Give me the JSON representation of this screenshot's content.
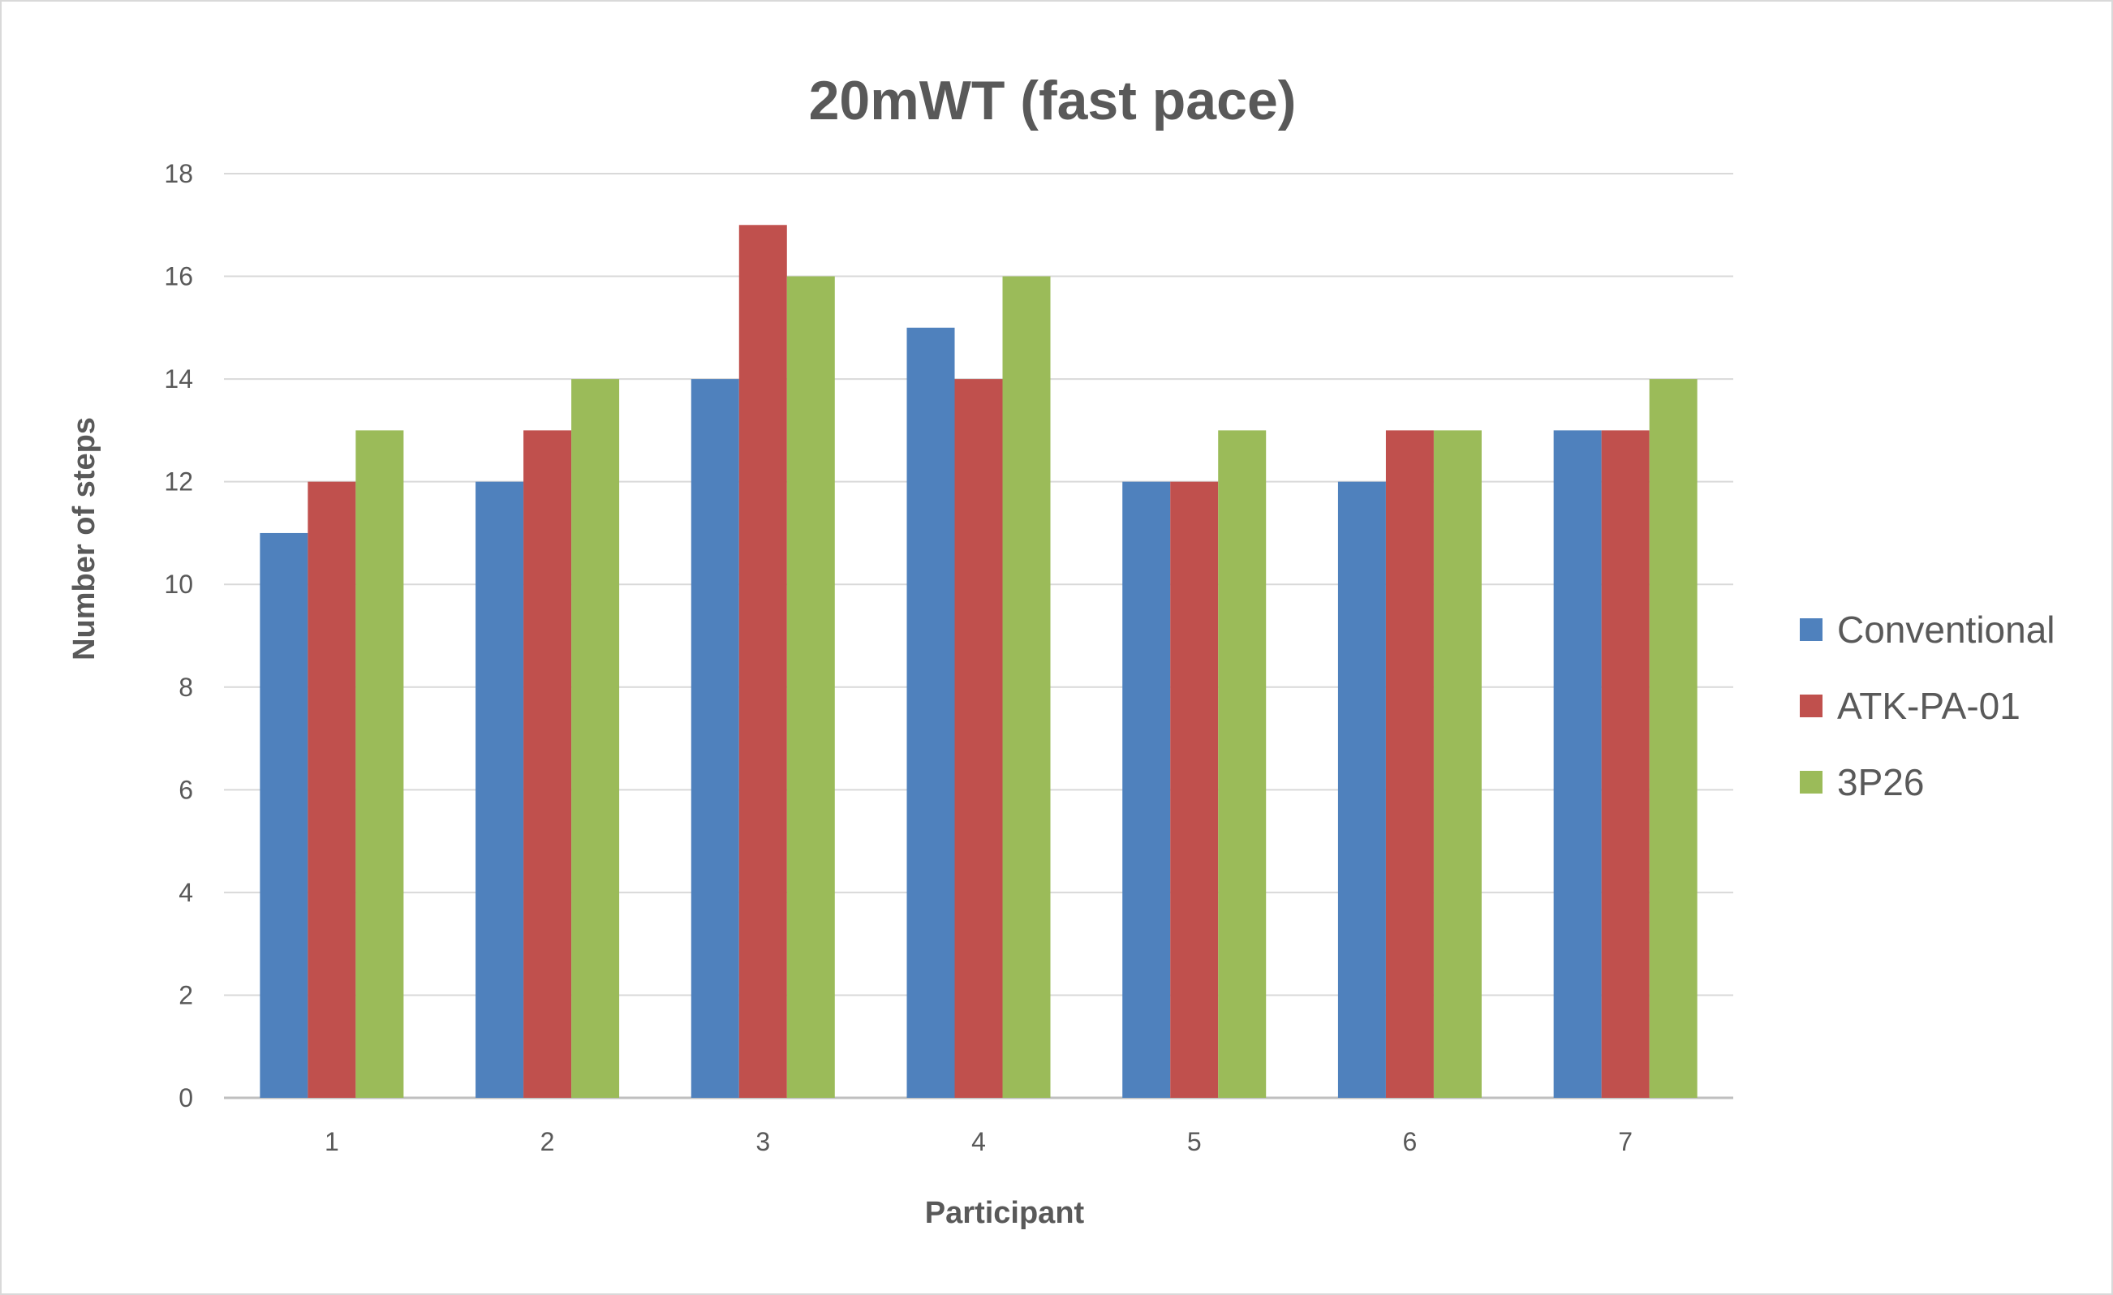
{
  "chart_data": {
    "type": "bar",
    "title": "20mWT (fast pace)",
    "xlabel": "Participant",
    "ylabel": "Number of steps",
    "categories": [
      "1",
      "2",
      "3",
      "4",
      "5",
      "6",
      "7"
    ],
    "series": [
      {
        "name": "Conventional",
        "color": "#4f81bd",
        "values": [
          11,
          12,
          14,
          15,
          12,
          12,
          13
        ]
      },
      {
        "name": "ATK-PA-01",
        "color": "#c0504d",
        "values": [
          12,
          13,
          17,
          14,
          12,
          13,
          13
        ]
      },
      {
        "name": "3P26",
        "color": "#9bbb59",
        "values": [
          13,
          14,
          16,
          16,
          13,
          13,
          14
        ]
      }
    ],
    "ylim": [
      0,
      18
    ],
    "yticks": [
      "0",
      "2",
      "4",
      "6",
      "8",
      "10",
      "12",
      "14",
      "16",
      "18"
    ],
    "grid": true,
    "legend_position": "right"
  }
}
